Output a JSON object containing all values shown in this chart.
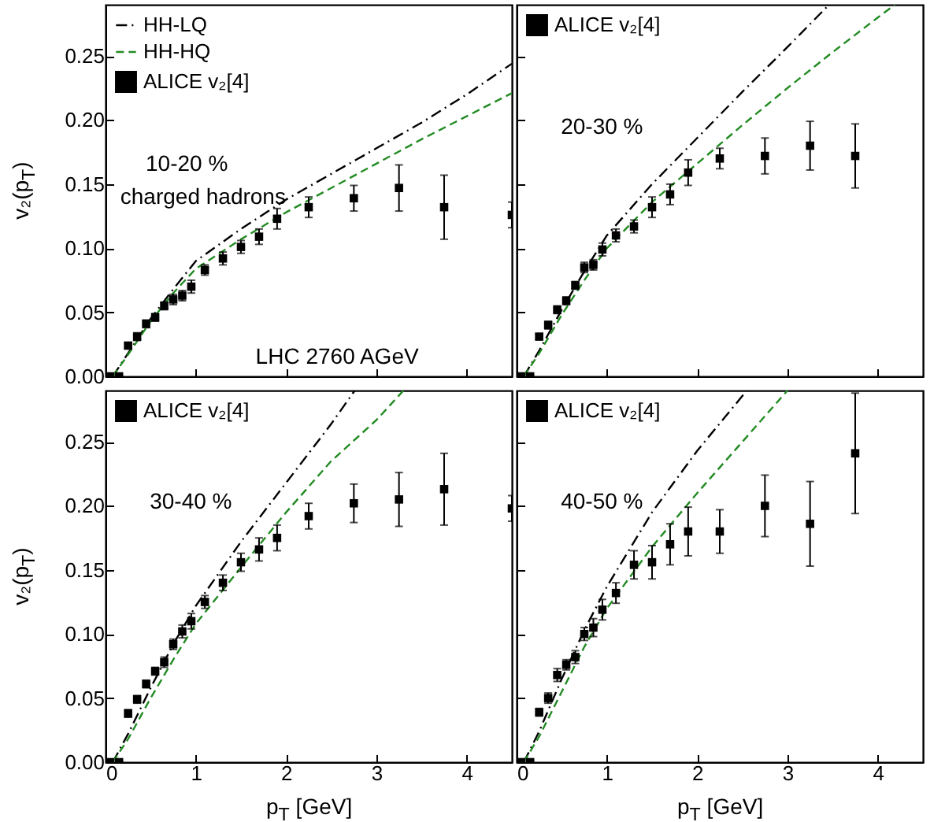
{
  "chart_data": [
    {
      "type": "line",
      "ylabel": "v₂(p$_{T}$)",
      "annotations": [
        "10-20 %",
        "charged hadrons",
        "LHC 2760 AGeV"
      ],
      "xlim": [
        0,
        4.5
      ],
      "xticks": [
        {
          "value": 0,
          "label": null
        },
        {
          "value": 1,
          "label": null
        },
        {
          "value": 2,
          "label": null
        },
        {
          "value": 3,
          "label": null
        },
        {
          "value": 4,
          "label": null
        }
      ],
      "ylim": [
        0,
        0.29
      ],
      "yticks": [
        {
          "value": 0,
          "label": "0.00"
        },
        {
          "value": 0.05,
          "label": "0.05"
        },
        {
          "value": 0.1,
          "label": "0.10"
        },
        {
          "value": 0.15,
          "label": "0.15"
        },
        {
          "value": 0.2,
          "label": "0.20"
        },
        {
          "value": 0.25,
          "label": "0.25"
        }
      ],
      "tick_labels": "y",
      "grid": false,
      "legend": "top left",
      "series": [
        {
          "name": "HH-LQ",
          "type": "line",
          "color": "#000000",
          "line_style": "dashdot",
          "x": [
            0.08,
            0.25,
            0.5,
            0.75,
            1,
            1.5,
            2,
            2.5,
            3,
            3.5,
            4,
            4.5
          ],
          "values": [
            0,
            0.018,
            0.045,
            0.068,
            0.09,
            0.115,
            0.138,
            0.158,
            0.178,
            0.198,
            0.22,
            0.244
          ]
        },
        {
          "name": "HH-HQ",
          "type": "line",
          "color": "#228b22",
          "line_style": "dashed",
          "x": [
            0.08,
            0.25,
            0.5,
            0.75,
            1,
            1.5,
            2,
            2.5,
            3,
            3.5,
            4,
            4.5
          ],
          "values": [
            0,
            0.017,
            0.043,
            0.065,
            0.084,
            0.107,
            0.128,
            0.147,
            0.166,
            0.185,
            0.203,
            0.221
          ]
        },
        {
          "name": "ALICE v₂[4]",
          "type": "scatter",
          "marker": "square",
          "color": "#000000",
          "x": [
            0.05,
            0.15,
            0.25,
            0.35,
            0.45,
            0.55,
            0.65,
            0.75,
            0.85,
            0.95,
            1.1,
            1.3,
            1.5,
            1.7,
            1.9,
            2.25,
            2.75,
            3.25,
            3.75,
            4.5
          ],
          "values": [
            0,
            0,
            0.024,
            0.031,
            0.041,
            0.046,
            0.055,
            0.06,
            0.063,
            0.07,
            0.083,
            0.092,
            0.101,
            0.109,
            0.123,
            0.132,
            0.139,
            0.147,
            0.132,
            0.126
          ],
          "errors": [
            0.001,
            0.001,
            0.002,
            0.003,
            0.003,
            0.003,
            0.003,
            0.004,
            0.004,
            0.005,
            0.004,
            0.005,
            0.005,
            0.006,
            0.008,
            0.008,
            0.01,
            0.018,
            0.025,
            0.01
          ]
        }
      ]
    },
    {
      "type": "line",
      "annotations": [
        "20-30 %"
      ],
      "xlim": [
        0,
        4.5
      ],
      "xticks": [
        {
          "value": 0,
          "label": null
        },
        {
          "value": 1,
          "label": null
        },
        {
          "value": 2,
          "label": null
        },
        {
          "value": 3,
          "label": null
        },
        {
          "value": 4,
          "label": null
        }
      ],
      "ylim": [
        0,
        0.29
      ],
      "yticks": [
        {
          "value": 0,
          "label": null
        },
        {
          "value": 0.05,
          "label": null
        },
        {
          "value": 0.1,
          "label": null
        },
        {
          "value": 0.15,
          "label": null
        },
        {
          "value": 0.2,
          "label": null
        },
        {
          "value": 0.25,
          "label": null
        }
      ],
      "tick_labels": false,
      "grid": false,
      "legend": "top left",
      "series": [
        {
          "type": "line",
          "color": "#000000",
          "line_style": "dashdot",
          "x": [
            0.08,
            0.25,
            0.5,
            0.75,
            1,
            1.5,
            2,
            2.5,
            3,
            3.46
          ],
          "values": [
            0,
            0.02,
            0.052,
            0.082,
            0.11,
            0.15,
            0.186,
            0.222,
            0.257,
            0.29
          ]
        },
        {
          "type": "line",
          "color": "#228b22",
          "line_style": "dashed",
          "x": [
            0.08,
            0.25,
            0.5,
            0.75,
            1,
            1.5,
            2,
            2.5,
            3,
            3.5,
            4,
            4.19
          ],
          "values": [
            0,
            0.018,
            0.048,
            0.075,
            0.1,
            0.136,
            0.166,
            0.196,
            0.225,
            0.253,
            0.28,
            0.29
          ]
        },
        {
          "name": "ALICE v₂[4]",
          "type": "scatter",
          "marker": "square",
          "color": "#000000",
          "x": [
            0.05,
            0.15,
            0.25,
            0.35,
            0.45,
            0.55,
            0.65,
            0.75,
            0.85,
            0.95,
            1.1,
            1.3,
            1.5,
            1.7,
            1.9,
            2.25,
            2.75,
            3.25,
            3.75
          ],
          "values": [
            0,
            0,
            0.031,
            0.04,
            0.052,
            0.059,
            0.071,
            0.085,
            0.087,
            0.099,
            0.11,
            0.117,
            0.132,
            0.142,
            0.159,
            0.17,
            0.172,
            0.18,
            0.172
          ],
          "errors": [
            0.001,
            0.001,
            0.002,
            0.003,
            0.003,
            0.003,
            0.003,
            0.004,
            0.004,
            0.005,
            0.005,
            0.005,
            0.008,
            0.008,
            0.01,
            0.008,
            0.014,
            0.019,
            0.025
          ]
        }
      ]
    },
    {
      "type": "line",
      "ylabel": "v₂(p$_{T}$)",
      "xlabel": "p$_{T}$ [GeV]",
      "annotations": [
        "30-40 %"
      ],
      "xlim": [
        0,
        4.5
      ],
      "xticks": [
        0,
        1,
        2,
        3,
        4
      ],
      "ylim": [
        0,
        0.29
      ],
      "yticks": [
        {
          "value": 0,
          "label": "0.00"
        },
        {
          "value": 0.05,
          "label": "0.05"
        },
        {
          "value": 0.1,
          "label": "0.10"
        },
        {
          "value": 0.15,
          "label": "0.15"
        },
        {
          "value": 0.2,
          "label": "0.20"
        },
        {
          "value": 0.25,
          "label": "0.25"
        }
      ],
      "grid": false,
      "legend": "top left",
      "series": [
        {
          "type": "line",
          "color": "#000000",
          "line_style": "dashdot",
          "x": [
            0.08,
            0.25,
            0.5,
            0.75,
            1,
            1.5,
            2,
            2.5,
            2.76
          ],
          "values": [
            0,
            0.022,
            0.058,
            0.092,
            0.122,
            0.172,
            0.218,
            0.264,
            0.29
          ]
        },
        {
          "type": "line",
          "color": "#228b22",
          "line_style": "dashed",
          "x": [
            0.08,
            0.25,
            0.5,
            0.75,
            1,
            1.5,
            2,
            2.5,
            3,
            3.3
          ],
          "values": [
            0,
            0.018,
            0.05,
            0.08,
            0.108,
            0.152,
            0.195,
            0.235,
            0.267,
            0.29
          ]
        },
        {
          "name": "ALICE v₂[4]",
          "type": "scatter",
          "marker": "square",
          "color": "#000000",
          "x": [
            0.05,
            0.15,
            0.25,
            0.35,
            0.45,
            0.55,
            0.65,
            0.75,
            0.85,
            0.95,
            1.1,
            1.3,
            1.5,
            1.7,
            1.9,
            2.25,
            2.75,
            3.25,
            3.75,
            4.5
          ],
          "values": [
            0,
            0,
            0.038,
            0.049,
            0.061,
            0.071,
            0.078,
            0.092,
            0.102,
            0.11,
            0.125,
            0.14,
            0.156,
            0.166,
            0.175,
            0.192,
            0.202,
            0.205,
            0.213,
            0.198
          ],
          "errors": [
            0.001,
            0.001,
            0.003,
            0.003,
            0.003,
            0.003,
            0.004,
            0.004,
            0.005,
            0.006,
            0.005,
            0.006,
            0.007,
            0.009,
            0.01,
            0.01,
            0.015,
            0.021,
            0.028,
            0.01
          ]
        }
      ]
    },
    {
      "type": "line",
      "xlabel": "p$_{T}$ [GeV]",
      "annotations": [
        "40-50 %"
      ],
      "xlim": [
        0,
        4.5
      ],
      "xticks": [
        0,
        1,
        2,
        3,
        4
      ],
      "ylim": [
        0,
        0.29
      ],
      "yticks": [
        {
          "value": 0,
          "label": null
        },
        {
          "value": 0.05,
          "label": null
        },
        {
          "value": 0.1,
          "label": null
        },
        {
          "value": 0.15,
          "label": null
        },
        {
          "value": 0.2,
          "label": null
        },
        {
          "value": 0.25,
          "label": null
        }
      ],
      "tick_labels": "x",
      "grid": false,
      "legend": "top left",
      "series": [
        {
          "type": "line",
          "color": "#000000",
          "line_style": "dashdot",
          "x": [
            0.08,
            0.25,
            0.5,
            0.75,
            1,
            1.5,
            2,
            2.55
          ],
          "values": [
            0,
            0.024,
            0.065,
            0.103,
            0.137,
            0.195,
            0.243,
            0.29
          ]
        },
        {
          "type": "line",
          "color": "#228b22",
          "line_style": "dashed",
          "x": [
            0.08,
            0.25,
            0.5,
            0.75,
            1,
            1.5,
            2,
            2.5,
            3
          ],
          "values": [
            0,
            0.02,
            0.055,
            0.09,
            0.12,
            0.168,
            0.21,
            0.25,
            0.29
          ]
        },
        {
          "name": "ALICE v₂[4]",
          "type": "scatter",
          "marker": "square",
          "color": "#000000",
          "x": [
            0.05,
            0.15,
            0.25,
            0.35,
            0.45,
            0.55,
            0.65,
            0.75,
            0.85,
            0.95,
            1.1,
            1.3,
            1.5,
            1.7,
            1.9,
            2.25,
            2.75,
            3.25,
            3.75
          ],
          "values": [
            0,
            0,
            0.039,
            0.05,
            0.068,
            0.076,
            0.082,
            0.1,
            0.105,
            0.119,
            0.132,
            0.154,
            0.156,
            0.17,
            0.18,
            0.18,
            0.2,
            0.186,
            0.241
          ],
          "errors": [
            0.001,
            0.001,
            0.003,
            0.004,
            0.005,
            0.004,
            0.005,
            0.005,
            0.007,
            0.008,
            0.008,
            0.011,
            0.013,
            0.016,
            0.019,
            0.017,
            0.024,
            0.033,
            0.047
          ]
        }
      ]
    }
  ]
}
